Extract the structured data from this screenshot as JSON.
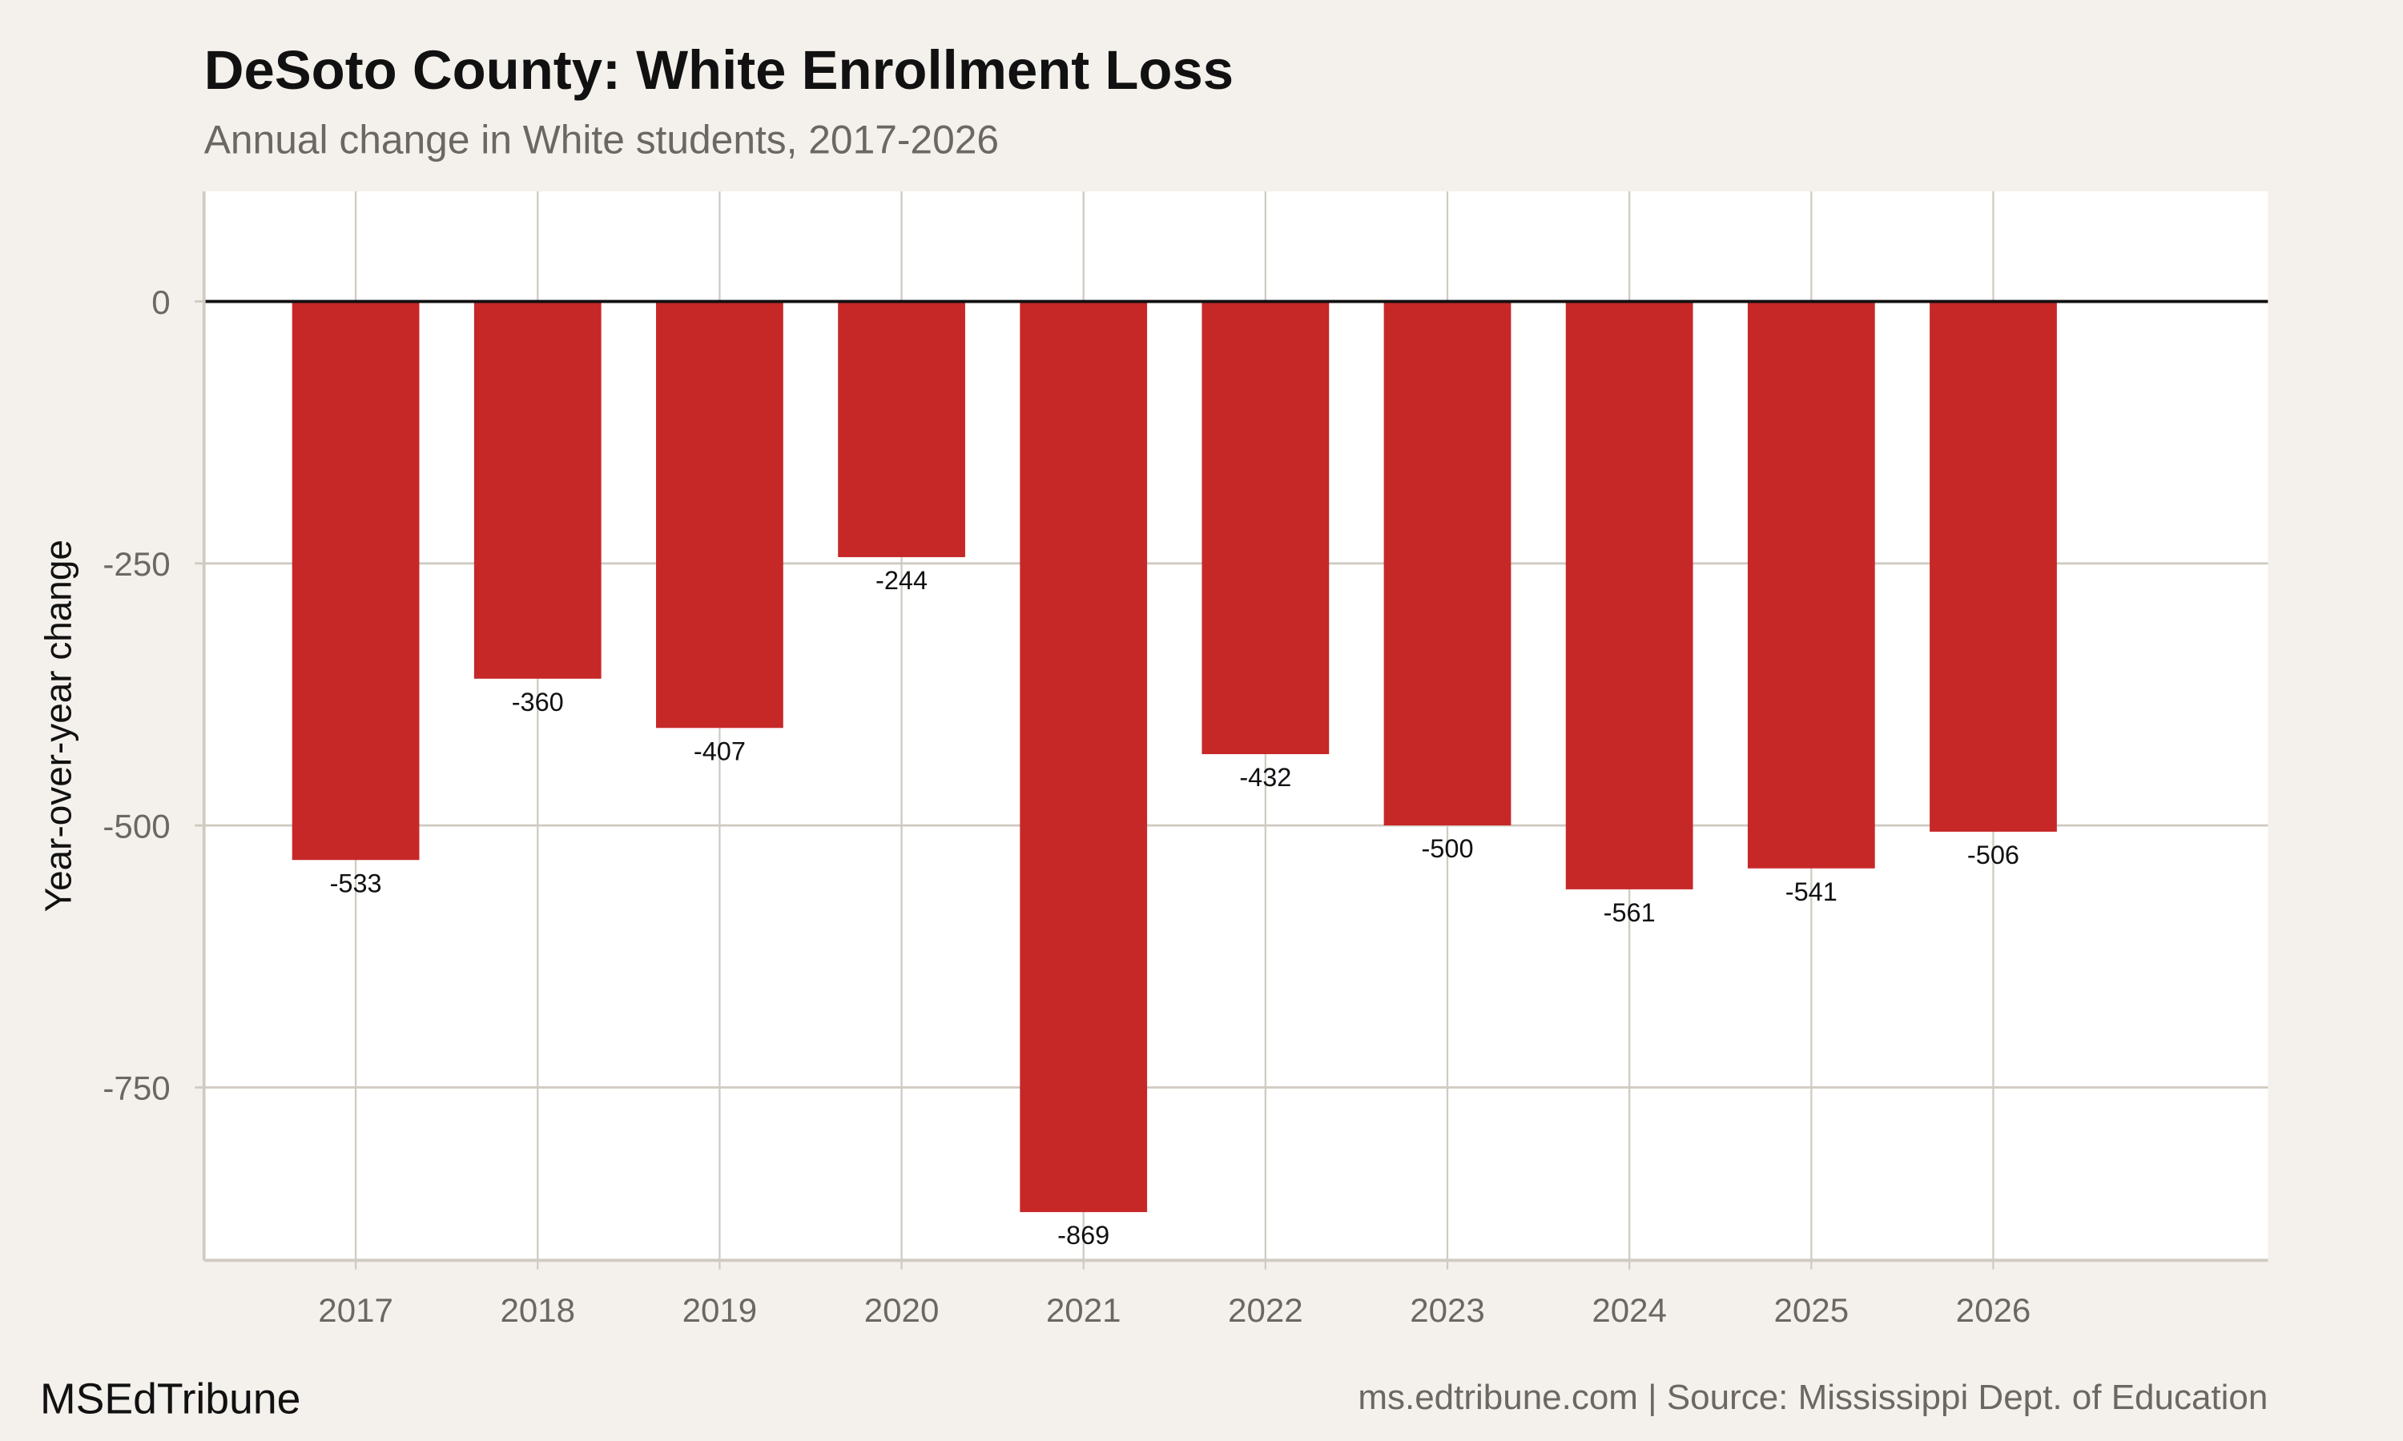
{
  "chart_data": {
    "type": "bar",
    "title": "DeSoto County: White Enrollment Loss",
    "subtitle": "Annual change in White students, 2017-2026",
    "xlabel": "",
    "ylabel": "Year-over-year change",
    "categories": [
      "2017",
      "2018",
      "2019",
      "2020",
      "2021",
      "2022",
      "2023",
      "2024",
      "2025",
      "2026"
    ],
    "values": [
      -533,
      -360,
      -407,
      -244,
      -869,
      -432,
      -500,
      -561,
      -541,
      -506
    ],
    "data_labels": [
      "-533",
      "-360",
      "-407",
      "-244",
      "-869",
      "-432",
      "-500",
      "-561",
      "-541",
      "-506"
    ],
    "ylim": [
      -915,
      105
    ],
    "yticks": [
      0,
      -250,
      -500,
      -750
    ],
    "ytick_labels": [
      "0",
      "-250",
      "-500",
      "-750"
    ],
    "grid": true,
    "legend": "none",
    "colors": {
      "bar": "#c62828",
      "background": "#f4f1ec",
      "panel": "#ffffff",
      "grid": "#d0cbc2",
      "zero_line": "#111111"
    }
  },
  "footer": {
    "brand": "MSEdTribune",
    "source": "ms.edtribune.com | Source: Mississippi Dept. of Education"
  }
}
